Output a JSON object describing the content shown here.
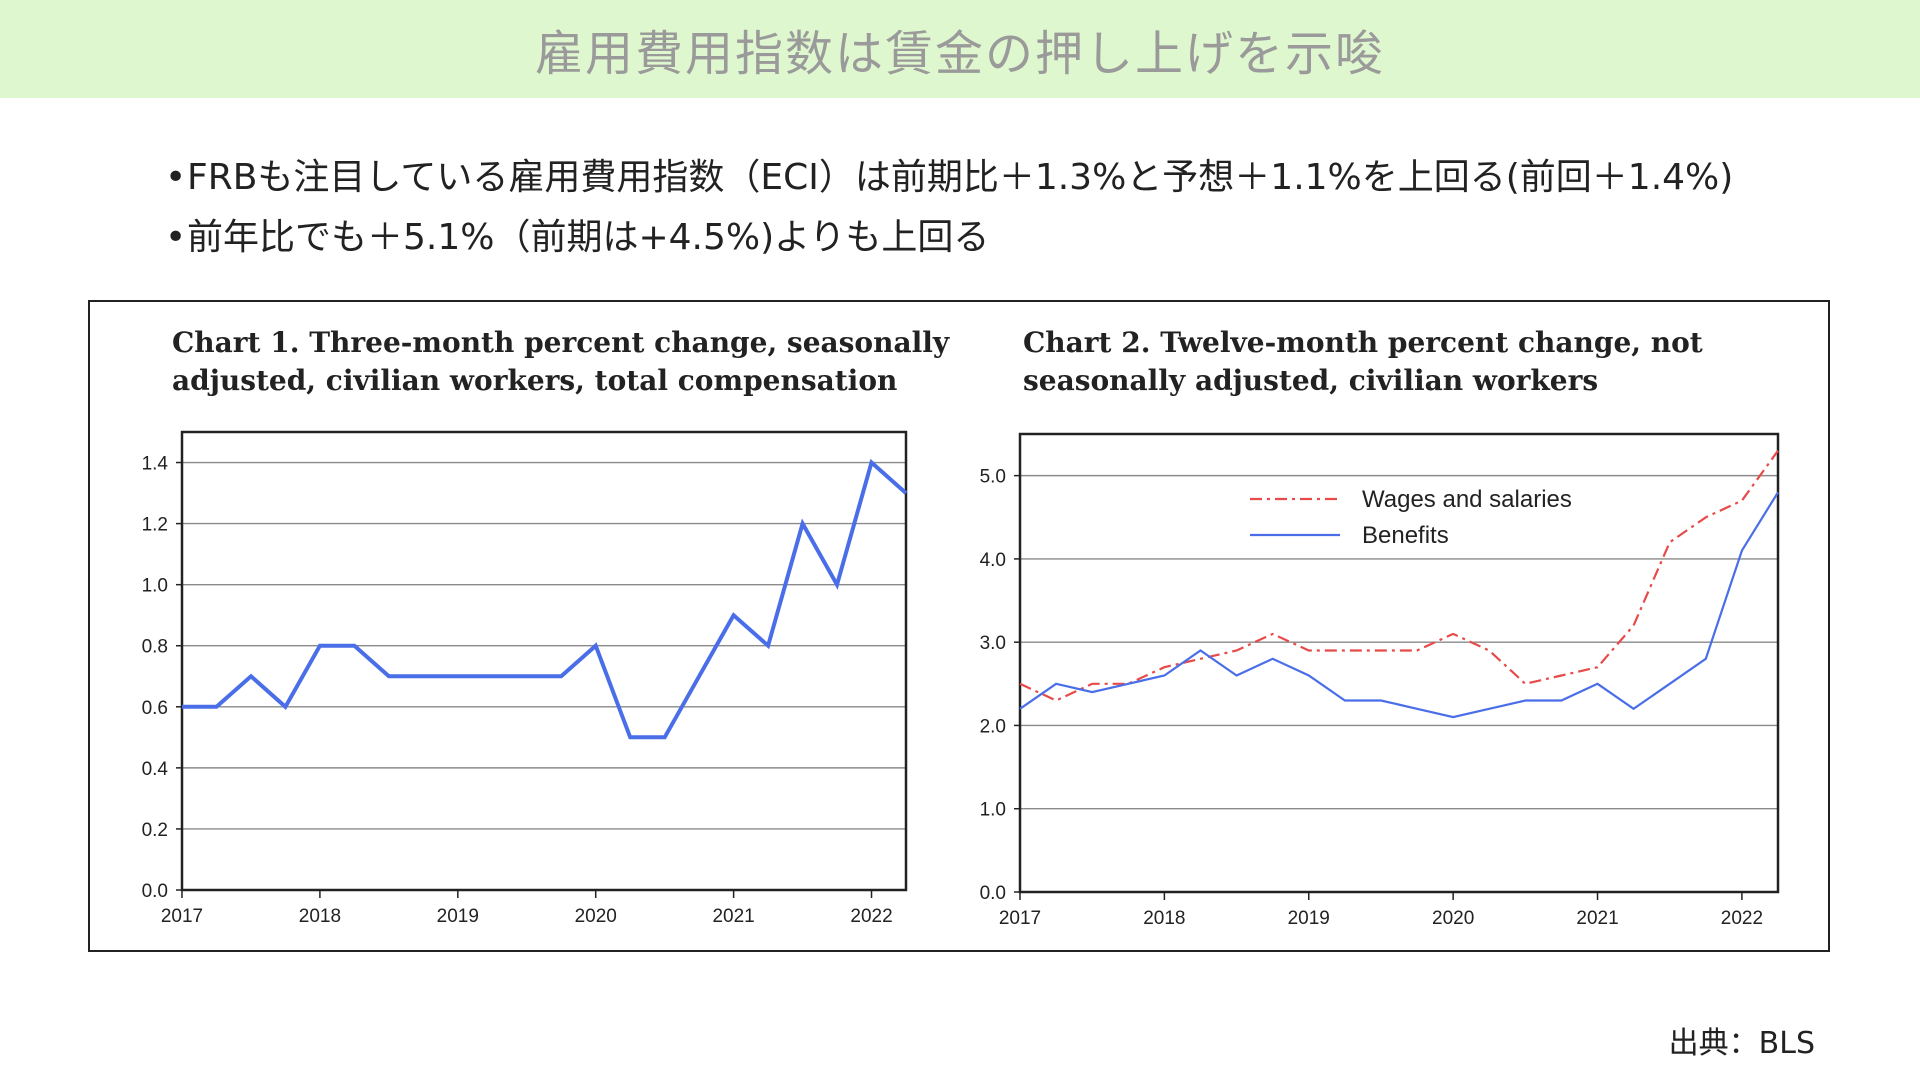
{
  "header": {
    "title": "雇用費用指数は賃金の押し上げを示唆"
  },
  "bullets": [
    "FRBも注目している雇用費用指数（ECI）は前期比＋1.3%と予想＋1.1%を上回る(前回＋1.4%)",
    "前年比でも＋5.1%（前期は+4.5%)よりも上回る"
  ],
  "source": "出典：BLS",
  "colors": {
    "banner": "#dff7cf",
    "series_blue": "#4a6ee8",
    "series_red": "#e84a4a",
    "bullet_dot": "#222222"
  },
  "chart_data": [
    {
      "type": "line",
      "title": "Chart 1. Three-month percent change, seasonally adjusted, civilian workers, total compensation",
      "title_lines": [
        "Chart 1. Three-month percent change, seasonally",
        "adjusted, civilian workers, total compensation"
      ],
      "xlabel": "",
      "ylabel": "",
      "xlim": [
        2017,
        2022.25
      ],
      "ylim": [
        0,
        1.5
      ],
      "xticks": [
        2017,
        2018,
        2019,
        2020,
        2021,
        2022
      ],
      "yticks": [
        0.0,
        0.2,
        0.4,
        0.6,
        0.8,
        1.0,
        1.2,
        1.4
      ],
      "ytick_labels": [
        "0.0",
        "0.2",
        "0.4",
        "0.6",
        "0.8",
        "1.0",
        "1.2",
        "1.4"
      ],
      "grid": "horizontal",
      "series": [
        {
          "color": "#4a6ee8",
          "x": [
            2017,
            2017.25,
            2017.5,
            2017.75,
            2018,
            2018.25,
            2018.5,
            2018.75,
            2019,
            2019.25,
            2019.5,
            2019.75,
            2020,
            2020.25,
            2020.5,
            2020.75,
            2021,
            2021.25,
            2021.5,
            2021.75,
            2022,
            2022.25
          ],
          "values": [
            0.6,
            0.6,
            0.7,
            0.6,
            0.8,
            0.8,
            0.7,
            0.7,
            0.7,
            0.7,
            0.7,
            0.7,
            0.8,
            0.5,
            0.5,
            0.7,
            0.9,
            0.8,
            1.2,
            1.0,
            1.4,
            1.3
          ]
        }
      ]
    },
    {
      "type": "line",
      "title": "Chart 2. Twelve-month percent change, not seasonally adjusted, civilian workers",
      "title_lines": [
        "Chart 2. Twelve-month percent change, not",
        "seasonally adjusted, civilian workers"
      ],
      "xlabel": "",
      "ylabel": "",
      "xlim": [
        2017,
        2022.25
      ],
      "ylim": [
        0,
        5.5
      ],
      "xticks": [
        2017,
        2018,
        2019,
        2020,
        2021,
        2022
      ],
      "yticks": [
        0,
        1,
        2,
        3,
        4,
        5
      ],
      "ytick_labels": [
        "0.0",
        "1.0",
        "2.0",
        "3.0",
        "4.0",
        "5.0"
      ],
      "grid": "horizontal",
      "legend": "top-left",
      "series": [
        {
          "name": "Wages and salaries",
          "color": "#e84a4a",
          "dash": "dash-dot",
          "x": [
            2017,
            2017.25,
            2017.5,
            2017.75,
            2018,
            2018.25,
            2018.5,
            2018.75,
            2019,
            2019.25,
            2019.5,
            2019.75,
            2020,
            2020.25,
            2020.5,
            2020.75,
            2021,
            2021.25,
            2021.5,
            2021.75,
            2022,
            2022.25
          ],
          "values": [
            2.5,
            2.3,
            2.5,
            2.5,
            2.7,
            2.8,
            2.9,
            3.1,
            2.9,
            2.9,
            2.9,
            2.9,
            3.1,
            2.9,
            2.5,
            2.6,
            2.7,
            3.2,
            4.2,
            4.5,
            4.7,
            5.3
          ]
        },
        {
          "name": "Benefits",
          "color": "#4a6ee8",
          "dash": "solid",
          "x": [
            2017,
            2017.25,
            2017.5,
            2017.75,
            2018,
            2018.25,
            2018.5,
            2018.75,
            2019,
            2019.25,
            2019.5,
            2019.75,
            2020,
            2020.25,
            2020.5,
            2020.75,
            2021,
            2021.25,
            2021.5,
            2021.75,
            2022,
            2022.25
          ],
          "values": [
            2.2,
            2.5,
            2.4,
            2.5,
            2.6,
            2.9,
            2.6,
            2.8,
            2.6,
            2.3,
            2.3,
            2.2,
            2.1,
            2.2,
            2.3,
            2.3,
            2.5,
            2.2,
            2.5,
            2.8,
            4.1,
            4.8
          ]
        }
      ]
    }
  ]
}
